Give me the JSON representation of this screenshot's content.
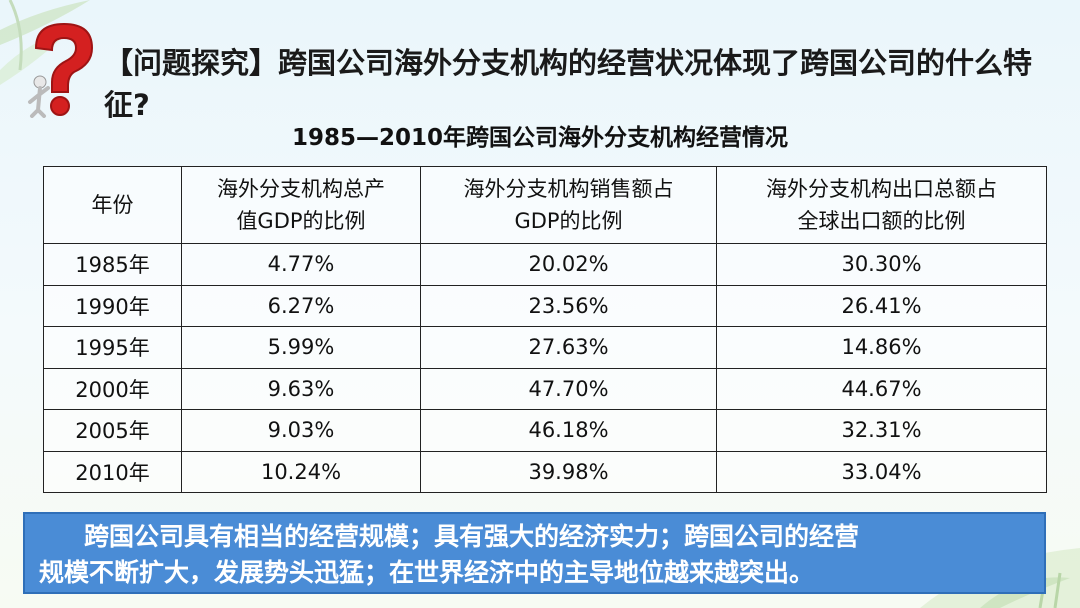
{
  "question": {
    "text": "【问题探究】跨国公司海外分支机构的经营状况体现了跨国公司的什么特征?"
  },
  "table_title": "1985—2010年跨国公司海外分支机构经营情况",
  "table": {
    "headers": [
      "年份",
      "海外分支机构总产值GDP的比例",
      "海外分支机构销售额占GDP的比例",
      "海外分支机构出口总额占全球出口额的比例"
    ],
    "header_lines": [
      [
        "年份"
      ],
      [
        "海外分支机构总产",
        "值GDP的比例"
      ],
      [
        "海外分支机构销售额占",
        "GDP的比例"
      ],
      [
        "海外分支机构出口总额占",
        "全球出口额的比例"
      ]
    ],
    "rows": [
      [
        "1985年",
        "4.77%",
        "20.02%",
        "30.30%"
      ],
      [
        "1990年",
        "6.27%",
        "23.56%",
        "26.41%"
      ],
      [
        "1995年",
        "5.99%",
        "27.63%",
        "14.86%"
      ],
      [
        "2000年",
        "9.63%",
        "47.70%",
        "44.67%"
      ],
      [
        "2005年",
        "9.03%",
        "46.18%",
        "32.31%"
      ],
      [
        "2010年",
        "10.24%",
        "39.98%",
        "33.04%"
      ]
    ]
  },
  "answer": {
    "line1": "跨国公司具有相当的经营规模；具有强大的经济实力；跨国公司的经营",
    "line2": "规模不断扩大，发展势头迅猛；在世界经济中的主导地位越来越突出。"
  },
  "colors": {
    "question_mark": "#d42020",
    "answer_box": "#4a8cd6",
    "background": "#eaf6fb"
  },
  "icons": [
    "question-mark-icon",
    "bamboo-leaf-decoration"
  ]
}
